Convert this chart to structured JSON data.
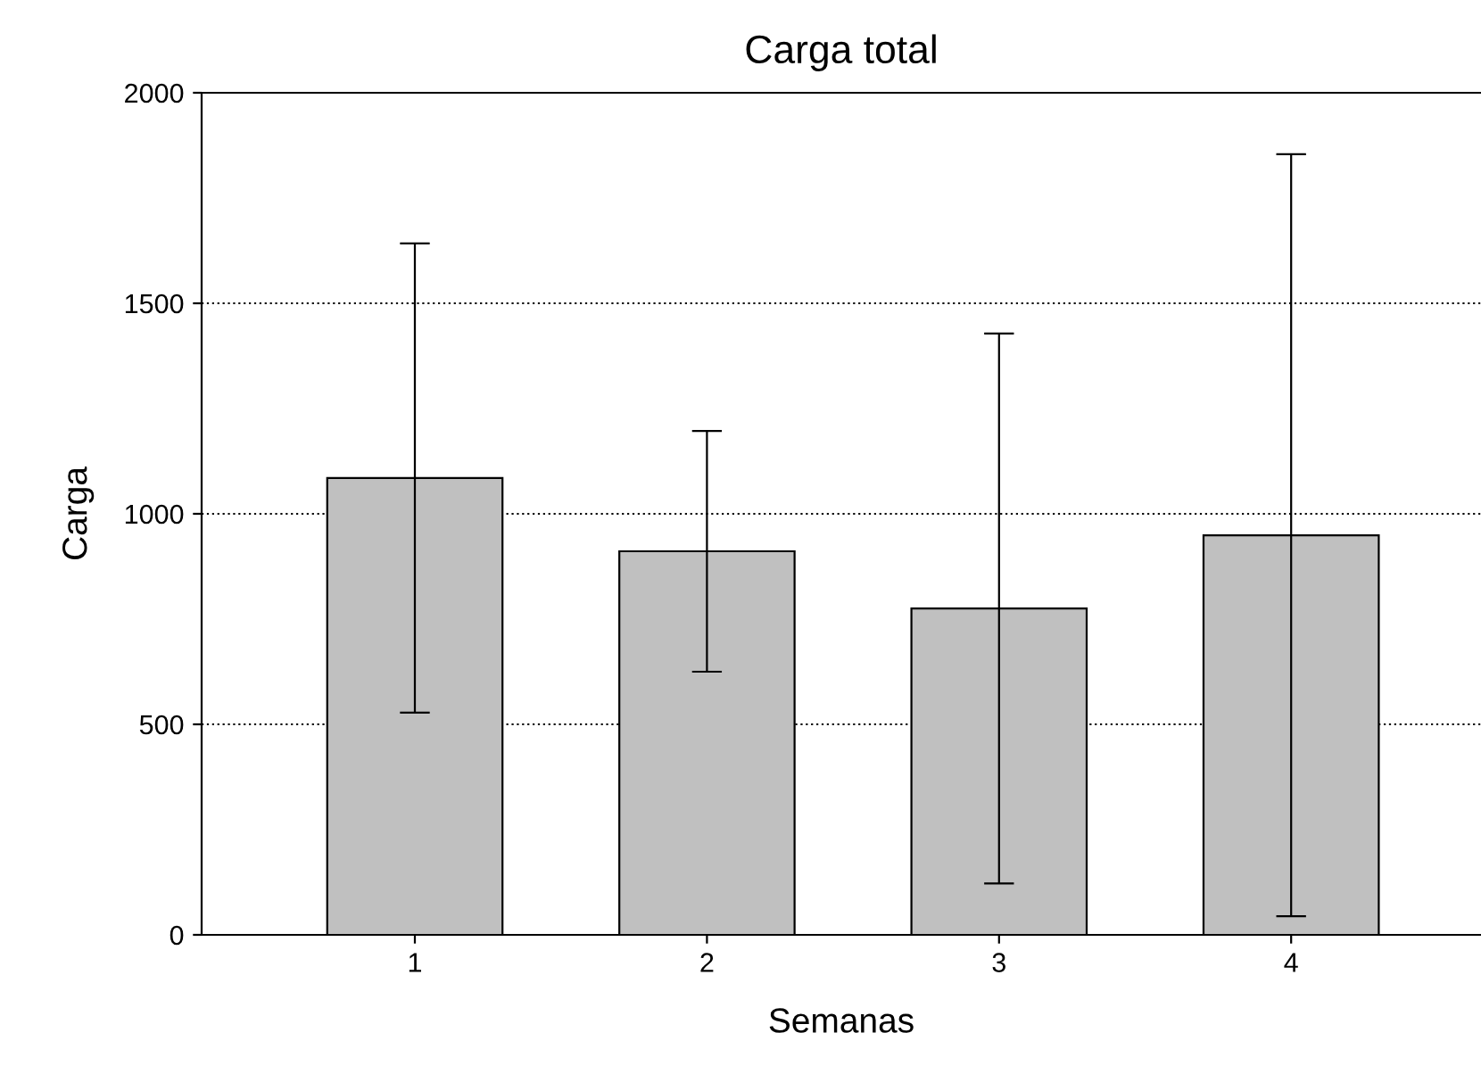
{
  "chart_data": {
    "type": "bar",
    "title": "Carga total",
    "xlabel": "Semanas",
    "ylabel": "Carga",
    "categories": [
      "1",
      "2",
      "3",
      "4"
    ],
    "values": [
      1085,
      911,
      775,
      949
    ],
    "errors": [
      557,
      286,
      653,
      905
    ],
    "color": "#c0c0c0",
    "ylim": [
      0,
      2000
    ],
    "yticks": [
      0,
      500,
      1000,
      1500,
      2000
    ],
    "grid": "y"
  }
}
